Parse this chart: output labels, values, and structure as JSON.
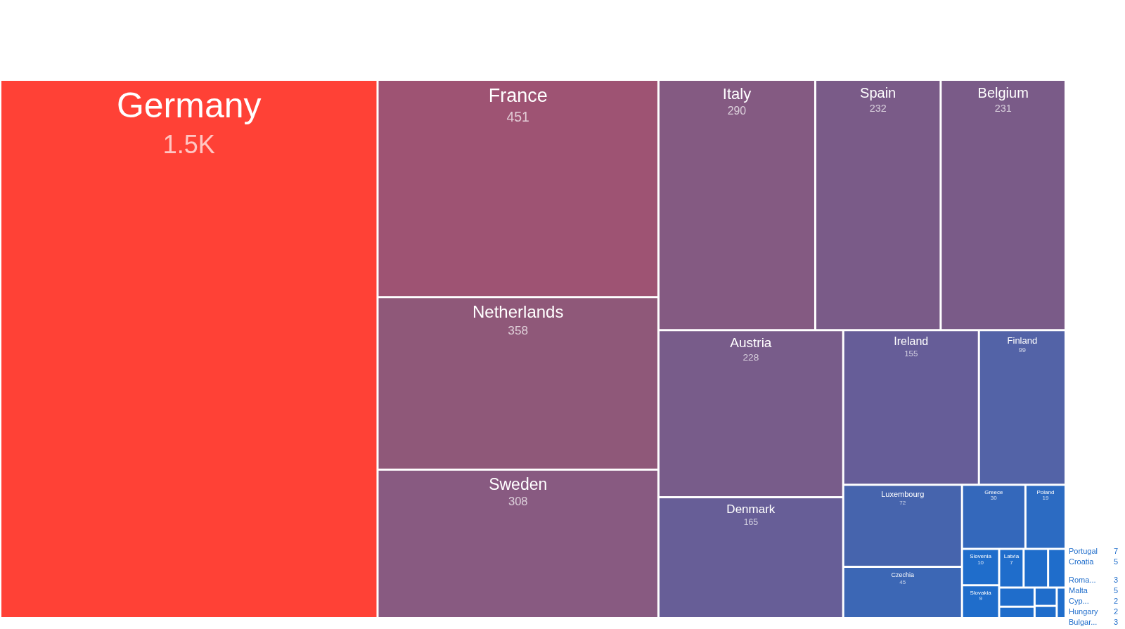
{
  "chart_data": {
    "type": "other",
    "categories": [
      "Germany",
      "France",
      "Netherlands",
      "Sweden",
      "Italy",
      "Spain",
      "Belgium",
      "Austria",
      "Denmark",
      "Ireland",
      "Finland",
      "Luxembourg",
      "Czechia",
      "Greece",
      "Poland",
      "Slovenia",
      "Slovakia",
      "Latvia",
      "Portugal",
      "Croatia",
      "Malta",
      "Bulgar...",
      "Roma...",
      "Hungary",
      "Cyp..."
    ],
    "values": [
      1500,
      451,
      358,
      308,
      290,
      232,
      231,
      228,
      165,
      155,
      99,
      72,
      45,
      30,
      19,
      10,
      9,
      7,
      7,
      5,
      5,
      3,
      3,
      2,
      2
    ],
    "value_labels": [
      "1.5K",
      "451",
      "358",
      "308",
      "290",
      "232",
      "231",
      "228",
      "165",
      "155",
      "99",
      "72",
      "45",
      "30",
      "19",
      "10",
      "9",
      "7",
      "7",
      "5",
      "5",
      "3",
      "3",
      "2",
      "2"
    ],
    "colors": [
      "#ff4136",
      "#9e5373",
      "#8f5879",
      "#885a81",
      "#845a82",
      "#7a5b88",
      "#7a5b88",
      "#785c8a",
      "#675e97",
      "#665d98",
      "#5363a7",
      "#4664ad",
      "#3c67b5",
      "#3468bb",
      "#2c6bc2",
      "#1f6dcb",
      "#1f6dcb",
      "#1f6dcb",
      "#1f6dcb",
      "#1f6dcb",
      "#1f6dcb",
      "#1f6dcb",
      "#1f6dcb",
      "#1f6dcb",
      "#1f6dcb"
    ]
  }
}
